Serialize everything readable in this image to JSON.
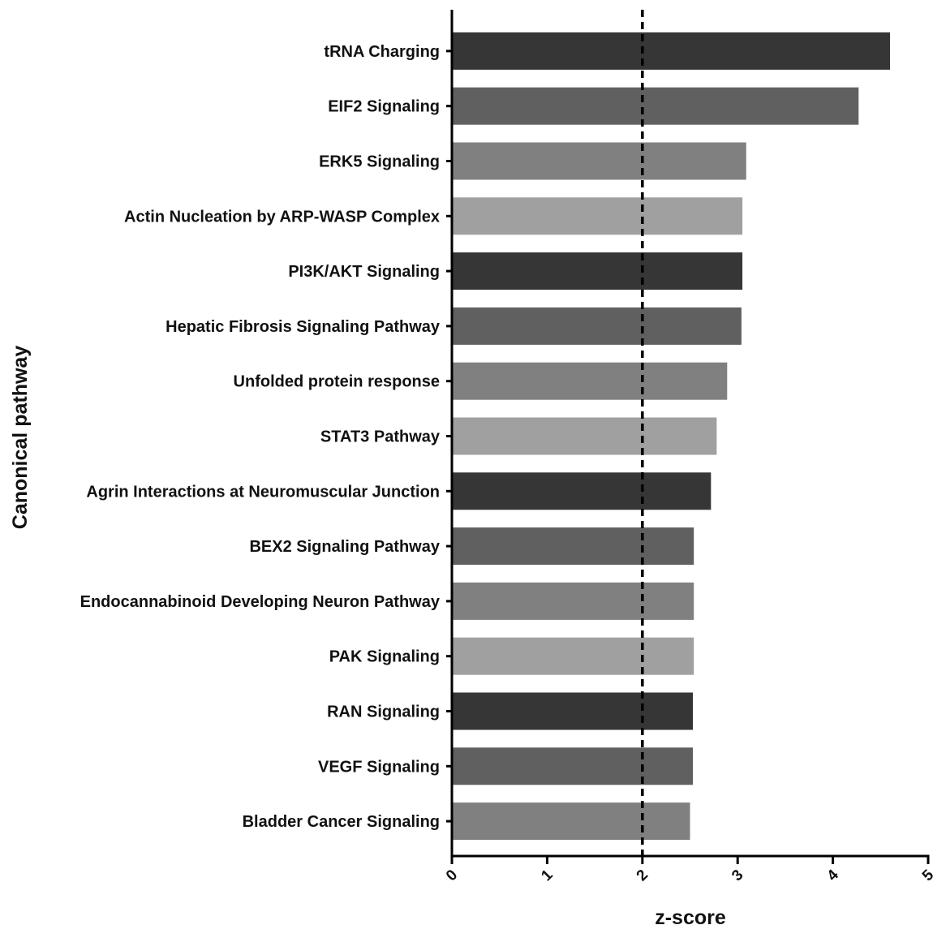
{
  "chart_data": {
    "type": "bar",
    "orientation": "horizontal",
    "categories": [
      "tRNA Charging",
      "EIF2 Signaling",
      "ERK5 Signaling",
      "Actin Nucleation by ARP-WASP Complex",
      "PI3K/AKT Signaling",
      "Hepatic Fibrosis Signaling Pathway",
      "Unfolded protein response",
      "STAT3 Pathway",
      "Agrin Interactions at Neuromuscular Junction",
      "BEX2 Signaling Pathway",
      "Endocannabinoid Developing Neuron Pathway",
      "PAK Signaling",
      "RAN Signaling",
      "VEGF Signaling",
      "Bladder Cancer Signaling"
    ],
    "values": [
      4.6,
      4.27,
      3.09,
      3.05,
      3.05,
      3.04,
      2.89,
      2.78,
      2.72,
      2.54,
      2.54,
      2.54,
      2.53,
      2.53,
      2.5
    ],
    "bar_colors": [
      "#363636",
      "#606060",
      "#808080",
      "#a0a0a0",
      "#363636",
      "#606060",
      "#808080",
      "#a0a0a0",
      "#363636",
      "#606060",
      "#808080",
      "#a0a0a0",
      "#363636",
      "#606060",
      "#808080"
    ],
    "xlabel": "z-score",
    "ylabel": "Canonical pathway",
    "xlim": [
      0,
      5
    ],
    "xticks": [
      0,
      1,
      2,
      3,
      4,
      5
    ],
    "reference_line": {
      "x": 2,
      "style": "dashed",
      "color": "#000000"
    },
    "grid": false
  }
}
